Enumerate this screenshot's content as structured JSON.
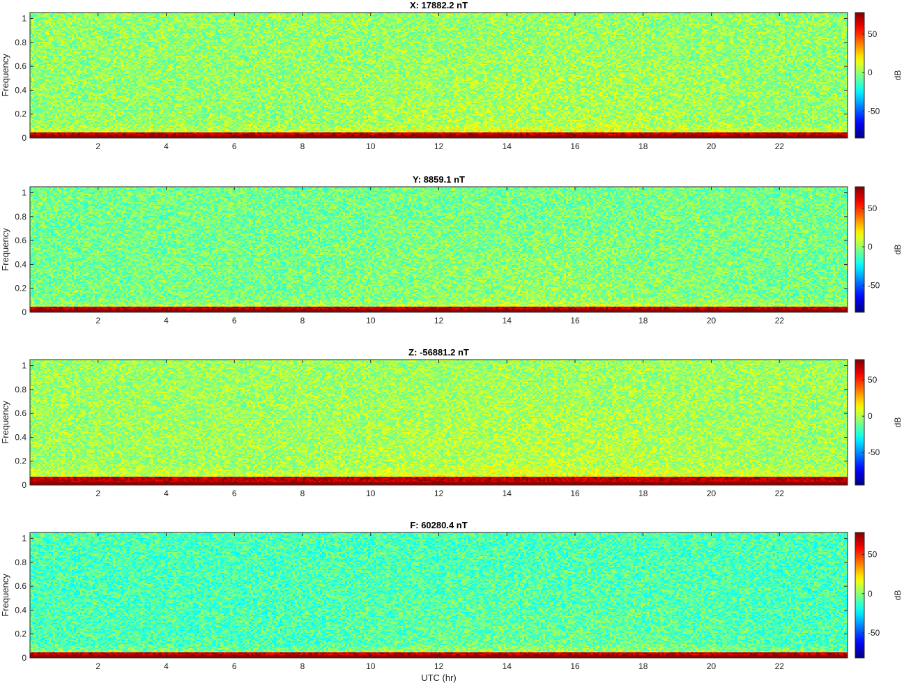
{
  "figure": {
    "colorbar_label": "dB",
    "colormap": "jet"
  },
  "chart_data": [
    {
      "type": "heatmap",
      "title": "X: 17882.2 nT",
      "xlabel": "",
      "ylabel": "Frequency",
      "xlim": [
        0,
        24
      ],
      "ylim": [
        0,
        1.05
      ],
      "xticks": [
        2,
        4,
        6,
        8,
        10,
        12,
        14,
        16,
        18,
        20,
        22
      ],
      "yticks": [
        0,
        0.2,
        0.4,
        0.6,
        0.8,
        1
      ],
      "colorbar": {
        "label": "dB",
        "range": [
          -85,
          78
        ],
        "ticks": [
          -50,
          0,
          50
        ]
      },
      "description_values": {
        "background_level_db": 0,
        "low_freq_band_level_db": 75,
        "low_freq_band_max_frequency": 0.05
      }
    },
    {
      "type": "heatmap",
      "title": "Y: 8859.1 nT",
      "xlabel": "",
      "ylabel": "Frequency",
      "xlim": [
        0,
        24
      ],
      "ylim": [
        0,
        1.05
      ],
      "xticks": [
        2,
        4,
        6,
        8,
        10,
        12,
        14,
        16,
        18,
        20,
        22
      ],
      "yticks": [
        0,
        0.2,
        0.4,
        0.6,
        0.8,
        1
      ],
      "colorbar": {
        "label": "dB",
        "range": [
          -85,
          78
        ],
        "ticks": [
          -50,
          0,
          50
        ]
      },
      "description_values": {
        "background_level_db": -5,
        "low_freq_band_level_db": 75,
        "low_freq_band_max_frequency": 0.05
      }
    },
    {
      "type": "heatmap",
      "title": "Z: -56881.2 nT",
      "xlabel": "",
      "ylabel": "Frequency",
      "xlim": [
        0,
        24
      ],
      "ylim": [
        0,
        1.05
      ],
      "xticks": [
        2,
        4,
        6,
        8,
        10,
        12,
        14,
        16,
        18,
        20,
        22
      ],
      "yticks": [
        0,
        0.2,
        0.4,
        0.6,
        0.8,
        1
      ],
      "colorbar": {
        "label": "dB",
        "range": [
          -95,
          78
        ],
        "ticks": [
          -50,
          0,
          50
        ]
      },
      "description_values": {
        "background_level_db": -3,
        "low_freq_band_level_db": 75,
        "low_freq_band_max_frequency": 0.07
      }
    },
    {
      "type": "heatmap",
      "title": "F: 60280.4 nT",
      "xlabel": "UTC (hr)",
      "ylabel": "Frequency",
      "xlim": [
        0,
        24
      ],
      "ylim": [
        0,
        1.05
      ],
      "xticks": [
        2,
        4,
        6,
        8,
        10,
        12,
        14,
        16,
        18,
        20,
        22
      ],
      "yticks": [
        0,
        0.2,
        0.4,
        0.6,
        0.8,
        1
      ],
      "colorbar": {
        "label": "dB",
        "range": [
          -82,
          78
        ],
        "ticks": [
          -50,
          0,
          50
        ]
      },
      "description_values": {
        "background_level_db": -10,
        "low_freq_band_level_db": 75,
        "low_freq_band_max_frequency": 0.05
      }
    }
  ]
}
